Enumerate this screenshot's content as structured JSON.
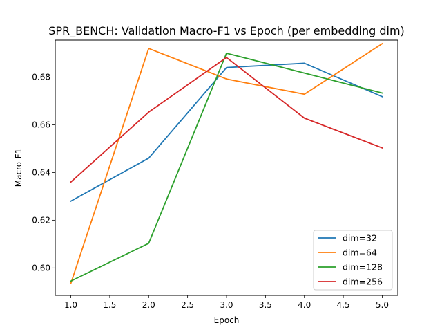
{
  "chart_data": {
    "type": "line",
    "title": "SPR_BENCH: Validation Macro-F1 vs Epoch (per embedding dim)",
    "xlabel": "Epoch",
    "ylabel": "Macro-F1",
    "x": [
      1,
      2,
      3,
      4,
      5
    ],
    "xlim": [
      0.8,
      5.2
    ],
    "ylim": [
      0.5885,
      0.6955
    ],
    "xticks": [
      1.0,
      1.5,
      2.0,
      2.5,
      3.0,
      3.5,
      4.0,
      4.5,
      5.0
    ],
    "xtick_labels": [
      "1.0",
      "1.5",
      "2.0",
      "2.5",
      "3.0",
      "3.5",
      "4.0",
      "4.5",
      "5.0"
    ],
    "yticks": [
      0.6,
      0.62,
      0.64,
      0.66,
      0.68
    ],
    "ytick_labels": [
      "0.60",
      "0.62",
      "0.64",
      "0.66",
      "0.68"
    ],
    "grid": false,
    "legend_position": "bottom-right",
    "series": [
      {
        "name": "dim=32",
        "color": "#1f77b4",
        "values": [
          0.628,
          0.646,
          0.684,
          0.6858,
          0.6718
        ]
      },
      {
        "name": "dim=64",
        "color": "#ff7f0e",
        "values": [
          0.5935,
          0.692,
          0.6792,
          0.6728,
          0.694
        ]
      },
      {
        "name": "dim=128",
        "color": "#2ca02c",
        "values": [
          0.5945,
          0.6103,
          0.69,
          0.6817,
          0.6733
        ]
      },
      {
        "name": "dim=256",
        "color": "#d62728",
        "values": [
          0.636,
          0.6653,
          0.6882,
          0.6628,
          0.6503
        ]
      }
    ]
  }
}
